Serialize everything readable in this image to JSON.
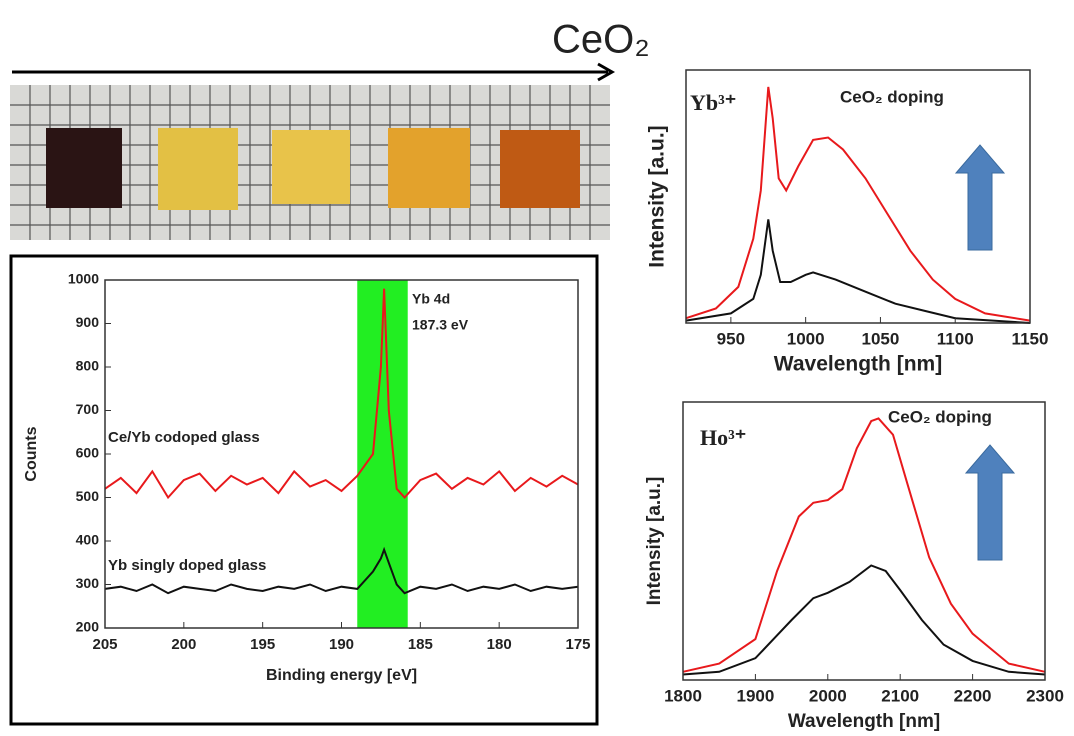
{
  "header": {
    "label": "CeO₂"
  },
  "chart_data": [
    {
      "type": "line",
      "xlabel": "Binding energy [eV]",
      "ylabel": "Counts",
      "xlim": [
        205,
        175
      ],
      "xticks": [
        205,
        200,
        195,
        190,
        185,
        180,
        175
      ],
      "ylim": [
        200,
        1000
      ],
      "yticks": [
        200,
        300,
        400,
        500,
        600,
        700,
        800,
        900,
        1000
      ],
      "highlight": {
        "x": [
          189,
          185.8
        ],
        "color": "#22ee22"
      },
      "annotations": [
        "Yb 4d",
        "187.3 eV"
      ],
      "series": [
        {
          "name": "Ce/Yb codoped glass",
          "color": "#e8191c",
          "x": [
            205,
            204,
            203,
            202,
            201,
            200,
            199,
            198,
            197,
            196,
            195,
            194,
            193,
            192,
            191,
            190,
            189,
            188,
            187.5,
            187.3,
            187,
            186.5,
            186,
            185,
            184,
            183,
            182,
            181,
            180,
            179,
            178,
            177,
            176,
            175
          ],
          "values": [
            520,
            545,
            510,
            560,
            500,
            540,
            555,
            515,
            550,
            530,
            545,
            510,
            560,
            525,
            540,
            515,
            550,
            600,
            800,
            980,
            700,
            520,
            500,
            540,
            555,
            520,
            545,
            530,
            560,
            515,
            545,
            525,
            550,
            530
          ]
        },
        {
          "name": "Yb singly doped glass",
          "color": "#111111",
          "x": [
            205,
            204,
            203,
            202,
            201,
            200,
            199,
            198,
            197,
            196,
            195,
            194,
            193,
            192,
            191,
            190,
            189,
            188,
            187.5,
            187.3,
            187,
            186.5,
            186,
            185,
            184,
            183,
            182,
            181,
            180,
            179,
            178,
            177,
            176,
            175
          ],
          "values": [
            290,
            295,
            285,
            300,
            280,
            295,
            290,
            285,
            300,
            290,
            285,
            295,
            290,
            300,
            285,
            295,
            290,
            330,
            360,
            380,
            350,
            300,
            280,
            295,
            290,
            300,
            285,
            295,
            290,
            300,
            285,
            295,
            290,
            295
          ]
        }
      ]
    },
    {
      "type": "line",
      "xlabel": "Wavelength [nm]",
      "ylabel": "Intensity [a.u.]",
      "xlim": [
        920,
        1150
      ],
      "xticks": [
        950,
        1000,
        1050,
        1100,
        1150
      ],
      "ylim": [
        0,
        1.05
      ],
      "annotations": [
        "Yb³⁺",
        "CeO₂ doping"
      ],
      "series": [
        {
          "color": "#e8191c",
          "x": [
            920,
            940,
            955,
            965,
            970,
            975,
            978,
            982,
            987,
            995,
            1005,
            1015,
            1025,
            1040,
            1055,
            1070,
            1085,
            1100,
            1120,
            1150
          ],
          "values": [
            0.02,
            0.06,
            0.15,
            0.35,
            0.55,
            0.98,
            0.85,
            0.6,
            0.55,
            0.65,
            0.76,
            0.77,
            0.72,
            0.6,
            0.45,
            0.3,
            0.18,
            0.1,
            0.04,
            0.01
          ]
        },
        {
          "color": "#111111",
          "x": [
            920,
            950,
            965,
            970,
            975,
            978,
            983,
            990,
            1000,
            1005,
            1020,
            1040,
            1060,
            1080,
            1100,
            1150
          ],
          "values": [
            0.01,
            0.04,
            0.1,
            0.2,
            0.43,
            0.3,
            0.17,
            0.17,
            0.2,
            0.21,
            0.18,
            0.13,
            0.08,
            0.05,
            0.02,
            0.0
          ]
        }
      ]
    },
    {
      "type": "line",
      "xlabel": "Wavelength [nm]",
      "ylabel": "Intensity [a.u.]",
      "xlim": [
        1800,
        2300
      ],
      "xticks": [
        1800,
        1900,
        2000,
        2100,
        2200,
        2300
      ],
      "ylim": [
        0,
        1.02
      ],
      "annotations": [
        "Ho³⁺",
        "CeO₂ doping"
      ],
      "series": [
        {
          "color": "#e8191c",
          "x": [
            1800,
            1850,
            1900,
            1930,
            1960,
            1980,
            2000,
            2020,
            2040,
            2060,
            2070,
            2090,
            2110,
            2140,
            2170,
            2200,
            2250,
            2300
          ],
          "values": [
            0.03,
            0.06,
            0.15,
            0.4,
            0.6,
            0.65,
            0.66,
            0.7,
            0.85,
            0.95,
            0.96,
            0.9,
            0.72,
            0.45,
            0.28,
            0.17,
            0.06,
            0.03
          ]
        },
        {
          "color": "#111111",
          "x": [
            1800,
            1850,
            1900,
            1950,
            1980,
            2000,
            2030,
            2060,
            2080,
            2100,
            2130,
            2160,
            2200,
            2250,
            2300
          ],
          "values": [
            0.02,
            0.03,
            0.08,
            0.22,
            0.3,
            0.32,
            0.36,
            0.42,
            0.4,
            0.33,
            0.22,
            0.13,
            0.07,
            0.03,
            0.02
          ]
        }
      ]
    }
  ]
}
